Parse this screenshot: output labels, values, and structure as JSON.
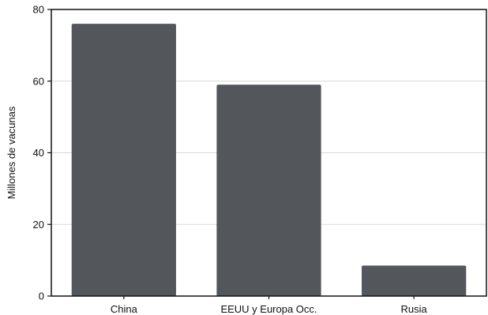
{
  "chart_data": {
    "type": "bar",
    "title": "",
    "xlabel": "",
    "ylabel": "Millones de vacunas",
    "categories": [
      "China",
      "EEUU y Europa Occ.",
      "Rusia"
    ],
    "values": [
      76,
      59,
      8.5
    ],
    "ylim": [
      0,
      80
    ],
    "yticks": [
      0,
      20,
      40,
      60,
      80
    ],
    "grid": "horizontal",
    "bar_color": "#53575c",
    "grid_color": "#d9d9d9",
    "axis_color": "#111111"
  }
}
